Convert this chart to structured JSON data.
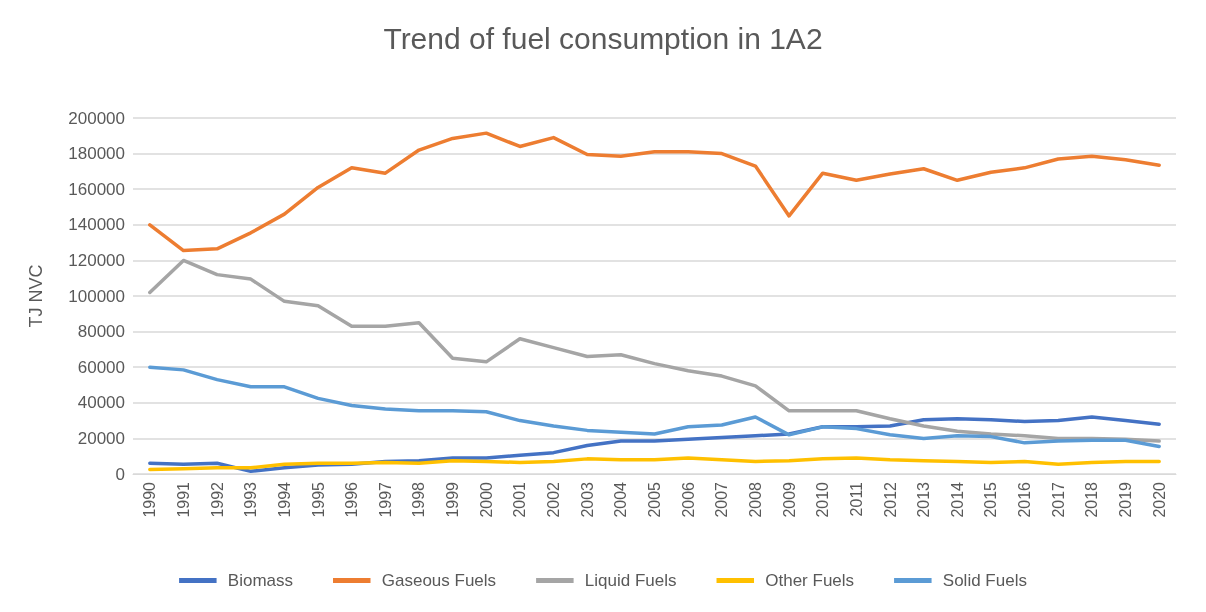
{
  "chart_data": {
    "type": "line",
    "title": "Trend of fuel consumption in 1A2",
    "ylabel": "TJ NVC",
    "categories": [
      "1990",
      "1991",
      "1992",
      "1993",
      "1994",
      "1995",
      "1996",
      "1997",
      "1998",
      "1999",
      "2000",
      "2001",
      "2002",
      "2003",
      "2004",
      "2005",
      "2006",
      "2007",
      "2008",
      "2009",
      "2010",
      "2011",
      "2012",
      "2013",
      "2014",
      "2015",
      "2016",
      "2017",
      "2018",
      "2019",
      "2020"
    ],
    "series": [
      {
        "name": "Biomass",
        "color": "#4472c4",
        "values": [
          6000,
          5500,
          6000,
          1500,
          3500,
          5000,
          5500,
          7000,
          7500,
          9000,
          9000,
          10500,
          12000,
          16000,
          18500,
          18500,
          19500,
          20500,
          21500,
          22500,
          26500,
          26500,
          27000,
          30500,
          31000,
          30500,
          29500,
          30000,
          32000,
          30000,
          28000
        ]
      },
      {
        "name": "Gaseous Fuels",
        "color": "#ed7d31",
        "values": [
          140000,
          125500,
          126500,
          135500,
          146000,
          161000,
          172000,
          169000,
          182000,
          188500,
          191500,
          184000,
          189000,
          179500,
          178500,
          181000,
          181000,
          180000,
          173000,
          145000,
          169000,
          165000,
          168500,
          171500,
          165000,
          169500,
          172000,
          177000,
          178500,
          176500,
          173500
        ]
      },
      {
        "name": "Liquid Fuels",
        "color": "#a5a5a5",
        "values": [
          102000,
          120000,
          112000,
          109500,
          97000,
          94500,
          83000,
          83000,
          85000,
          65000,
          63000,
          76000,
          71000,
          66000,
          67000,
          62000,
          58000,
          55000,
          49500,
          35500,
          35500,
          35500,
          31000,
          27000,
          24000,
          22500,
          21500,
          20000,
          20000,
          19500,
          18500
        ]
      },
      {
        "name": "Other Fuels",
        "color": "#ffc000",
        "values": [
          2500,
          3000,
          3500,
          3500,
          5500,
          6000,
          6000,
          6500,
          6000,
          7500,
          7000,
          6500,
          7000,
          8500,
          8000,
          8000,
          9000,
          8000,
          7000,
          7500,
          8500,
          9000,
          8000,
          7500,
          7000,
          6500,
          7000,
          5500,
          6500,
          7000,
          7000
        ]
      },
      {
        "name": "Solid Fuels",
        "color": "#5b9bd5",
        "values": [
          60000,
          58500,
          53000,
          49000,
          49000,
          42500,
          38500,
          36500,
          35500,
          35500,
          35000,
          30000,
          27000,
          24500,
          23500,
          22500,
          26500,
          27500,
          32000,
          22000,
          26500,
          25500,
          22000,
          20000,
          21500,
          21000,
          17500,
          18500,
          19000,
          19000,
          15500
        ]
      }
    ],
    "ylim": [
      0,
      200000
    ],
    "yticks": [
      0,
      20000,
      40000,
      60000,
      80000,
      100000,
      120000,
      140000,
      160000,
      180000,
      200000
    ],
    "grid": "y",
    "legend": "bottom",
    "marker": "none",
    "line_style": "solid"
  }
}
